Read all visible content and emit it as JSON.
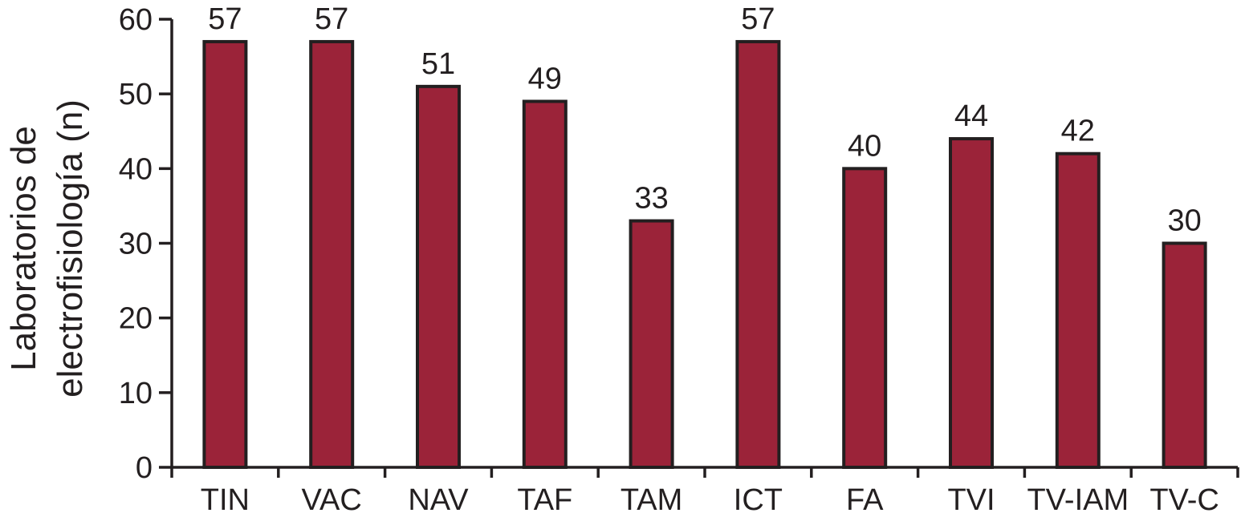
{
  "chart_data": {
    "type": "bar",
    "categories": [
      "TIN",
      "VAC",
      "NAV",
      "TAF",
      "TAM",
      "ICT",
      "FA",
      "TVI",
      "TV-IAM",
      "TV-C"
    ],
    "values": [
      57,
      57,
      51,
      49,
      33,
      57,
      40,
      44,
      42,
      30
    ],
    "value_labels": [
      "57",
      "57",
      "51",
      "49",
      "33",
      "57",
      "40",
      "44",
      "42",
      "30"
    ],
    "title": "",
    "xlabel": "",
    "ylabel": [
      "Laboratorios de",
      "electrofisiología (n)"
    ],
    "ylim": [
      0,
      60
    ],
    "yticks": [
      0,
      10,
      20,
      30,
      40,
      50,
      60
    ],
    "ytick_labels": [
      "0",
      "10",
      "20",
      "30",
      "40",
      "50",
      "60"
    ],
    "grid": false,
    "legend": "none",
    "colors": {
      "bar": "#9b2339",
      "bar_outline": "#231f20",
      "axis": "#231f20",
      "text": "#231f20"
    }
  }
}
